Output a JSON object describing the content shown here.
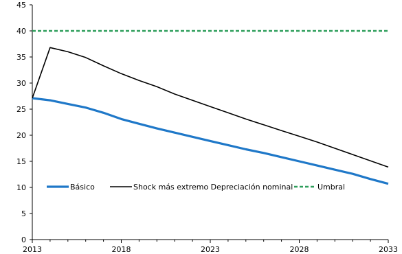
{
  "chart_data": {
    "type": "line",
    "title": "",
    "xlabel": "",
    "ylabel": "",
    "ylim": [
      0,
      45
    ],
    "yticks": [
      0,
      5,
      10,
      15,
      20,
      25,
      30,
      35,
      40,
      45
    ],
    "xlim": [
      2013,
      2033
    ],
    "xticks": [
      2013,
      2018,
      2023,
      2028,
      2033
    ],
    "grid": false,
    "legend_position": "inside-lower-left",
    "series": [
      {
        "name": "Básico",
        "color": "#1f78c8",
        "style": "solid-thick",
        "x": [
          2013,
          2014,
          2015,
          2016,
          2017,
          2018,
          2019,
          2020,
          2021,
          2022,
          2023,
          2024,
          2025,
          2026,
          2027,
          2028,
          2029,
          2030,
          2031,
          2032,
          2033
        ],
        "values": [
          27.1,
          26.7,
          26.0,
          25.3,
          24.3,
          23.1,
          22.2,
          21.3,
          20.5,
          19.7,
          18.9,
          18.1,
          17.3,
          16.6,
          15.8,
          15.0,
          14.2,
          13.4,
          12.6,
          11.6,
          10.7
        ]
      },
      {
        "name": "Shock más extremo Depreciación nominal",
        "color": "#000000",
        "style": "solid",
        "x": [
          2013,
          2014,
          2015,
          2016,
          2017,
          2018,
          2019,
          2020,
          2021,
          2022,
          2023,
          2024,
          2025,
          2026,
          2027,
          2028,
          2029,
          2030,
          2031,
          2032,
          2033
        ],
        "values": [
          27.1,
          36.8,
          36.0,
          34.9,
          33.3,
          31.8,
          30.5,
          29.3,
          27.9,
          26.7,
          25.5,
          24.3,
          23.1,
          22.0,
          20.9,
          19.8,
          18.7,
          17.5,
          16.3,
          15.1,
          13.9
        ]
      },
      {
        "name": "Umbral",
        "color": "#2e9e5b",
        "style": "dashed",
        "x": [
          2013,
          2033
        ],
        "values": [
          40,
          40
        ]
      }
    ]
  }
}
